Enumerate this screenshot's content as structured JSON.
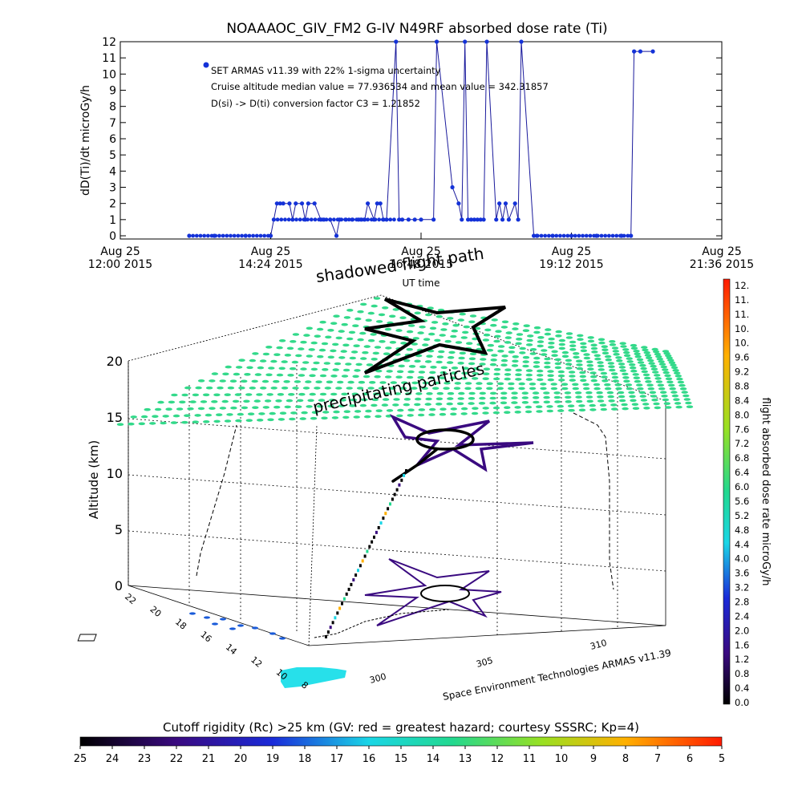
{
  "chart_data": [
    {
      "type": "line",
      "title": "NOAAAOC_GIV_FM2 G-IV    N49RF  absorbed dose rate (Ti)",
      "ylabel": "dD(Ti)/dt microGy/h",
      "xlabel": "UT time",
      "ylim": [
        0,
        12
      ],
      "yticks": [
        "0",
        "1",
        "2",
        "3",
        "4",
        "5",
        "6",
        "7",
        "8",
        "9",
        "10",
        "11",
        "12"
      ],
      "xticks": [
        {
          "date": "Aug 25",
          "time": "12:00 2015"
        },
        {
          "date": "Aug 25",
          "time": "14:24 2015"
        },
        {
          "date": "Aug 25",
          "time": "16:48 2015"
        },
        {
          "date": "Aug 25",
          "time": "19:12 2015"
        },
        {
          "date": "Aug 25",
          "time": "21:36 2015"
        }
      ],
      "annotations": [
        "SET ARMAS v11.39 with 22% 1-sigma uncertainty",
        "Cruise altitude median value = 77.936534 and mean value = 342.31857",
        "D(si) -> D(ti) conversion factor C3 = 1.21852"
      ],
      "series": [
        {
          "x_hours": [
            13.1,
            13.5,
            14.0,
            14.4,
            14.45,
            14.5,
            14.55,
            14.6,
            14.7,
            14.75,
            14.8,
            14.9,
            14.95,
            15.0,
            15.1,
            15.2,
            15.25,
            15.35,
            15.45,
            15.5,
            15.6,
            15.7,
            15.8,
            15.85,
            15.9,
            15.95,
            16.05,
            16.1,
            16.15,
            16.2,
            16.25,
            16.4,
            16.45,
            16.5,
            16.6,
            16.7,
            16.8,
            17.0,
            17.05,
            17.3,
            17.4,
            17.45,
            17.5,
            17.55,
            17.6,
            17.65,
            17.7,
            17.75,
            17.8,
            17.85,
            18.0,
            18.05,
            18.1,
            18.15,
            18.2,
            18.3,
            18.35,
            18.4,
            18.6,
            18.65,
            18.9,
            19.2,
            19.6,
            20.0,
            20.15,
            20.2,
            20.3,
            20.5
          ],
          "values": [
            0,
            0,
            0,
            0,
            1,
            2,
            2,
            2,
            2,
            1,
            2,
            2,
            1,
            2,
            2,
            1,
            1,
            1,
            0,
            1,
            1,
            1,
            1,
            1,
            1,
            2,
            1,
            2,
            2,
            1,
            1,
            12,
            1,
            1,
            1,
            1,
            1,
            1,
            12,
            3,
            2,
            1,
            12,
            1,
            1,
            1,
            1,
            1,
            1,
            12,
            1,
            2,
            1,
            2,
            1,
            2,
            1,
            12,
            0,
            0,
            0,
            0,
            0,
            0,
            0,
            11.4,
            11.4,
            11.4
          ]
        }
      ]
    },
    {
      "type": "scatter",
      "zlabel": "Altitude (km)",
      "zlim": [
        0,
        20
      ],
      "zticks": [
        "0",
        "5",
        "10",
        "15",
        "20"
      ],
      "y_ticks": [
        "22",
        "20",
        "18",
        "16",
        "14",
        "12",
        "10",
        "8"
      ],
      "x_ticks": [
        "300",
        "305",
        "310"
      ],
      "annotations": [
        "shadowed flight path",
        "precipitating particles"
      ],
      "credit": "Space Environment Technologies ARMAS v11.39",
      "colorbar_title": "flight absorbed dose rate microGy/h",
      "colorbar_ticks": [
        "12.",
        "11.",
        "11.",
        "10.",
        "10.",
        "9.6",
        "9.2",
        "8.8",
        "8.4",
        "8.0",
        "7.6",
        "7.2",
        "6.8",
        "6.4",
        "6.0",
        "5.6",
        "5.2",
        "4.8",
        "4.4",
        "4.0",
        "3.6",
        "3.2",
        "2.8",
        "2.4",
        "2.0",
        "1.6",
        "1.2",
        "0.8",
        "0.4",
        "0.0"
      ],
      "rigidity_title": "Cutoff rigidity (Rc) >25 km (GV: red = greatest hazard; courtesy SSSRC; Kp=4)",
      "rigidity_ticks": [
        "25",
        "24",
        "23",
        "22",
        "21",
        "20",
        "19",
        "18",
        "17",
        "16",
        "15",
        "14",
        "13",
        "12",
        "11",
        "10",
        "9",
        "8",
        "7",
        "6",
        "5"
      ]
    }
  ],
  "colors": {
    "line": "#1a1a9c",
    "marker": "#1432d8",
    "particle": "#33d98a",
    "axis": "#000000"
  }
}
